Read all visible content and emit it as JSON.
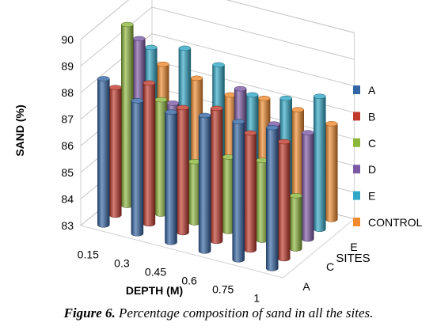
{
  "chart_data": {
    "type": "bar",
    "variant": "3d-cylinder",
    "categories": [
      "0.15",
      "0.3",
      "0.45",
      "0.6",
      "0.75",
      "1"
    ],
    "series": [
      {
        "name": "A",
        "color": "#3465a4",
        "values": [
          88.5,
          88.0,
          87.9,
          88.1,
          88.2,
          88.3
        ]
      },
      {
        "name": "B",
        "color": "#c0392b",
        "values": [
          87.8,
          88.3,
          87.7,
          88.0,
          87.4,
          87.4
        ]
      },
      {
        "name": "C",
        "color": "#8db63c",
        "values": [
          89.8,
          87.3,
          85.3,
          85.8,
          86.0,
          85.0
        ]
      },
      {
        "name": "D",
        "color": "#7d5aa6",
        "values": [
          88.9,
          86.8,
          85.8,
          88.0,
          87.0,
          87.0
        ]
      },
      {
        "name": "E",
        "color": "#31a8c6",
        "values": [
          88.2,
          88.5,
          88.2,
          87.4,
          87.6,
          88.0
        ]
      },
      {
        "name": "CONTROL",
        "color": "#f08a2c",
        "values": [
          87.2,
          87.0,
          86.7,
          86.9,
          86.8,
          86.6
        ]
      }
    ],
    "depth_axis": {
      "title": "SITES",
      "labels": [
        "A",
        "C",
        "E"
      ]
    },
    "xlabel": "DEPTH (M)",
    "ylabel": "SAND (%)",
    "ylim": [
      83,
      90
    ],
    "yticks": [
      83,
      84,
      85,
      86,
      87,
      88,
      89,
      90
    ],
    "grid": true,
    "legend": "right"
  },
  "caption": {
    "label": "Figure 6.",
    "text": " Percentage composition of sand in all the sites."
  }
}
